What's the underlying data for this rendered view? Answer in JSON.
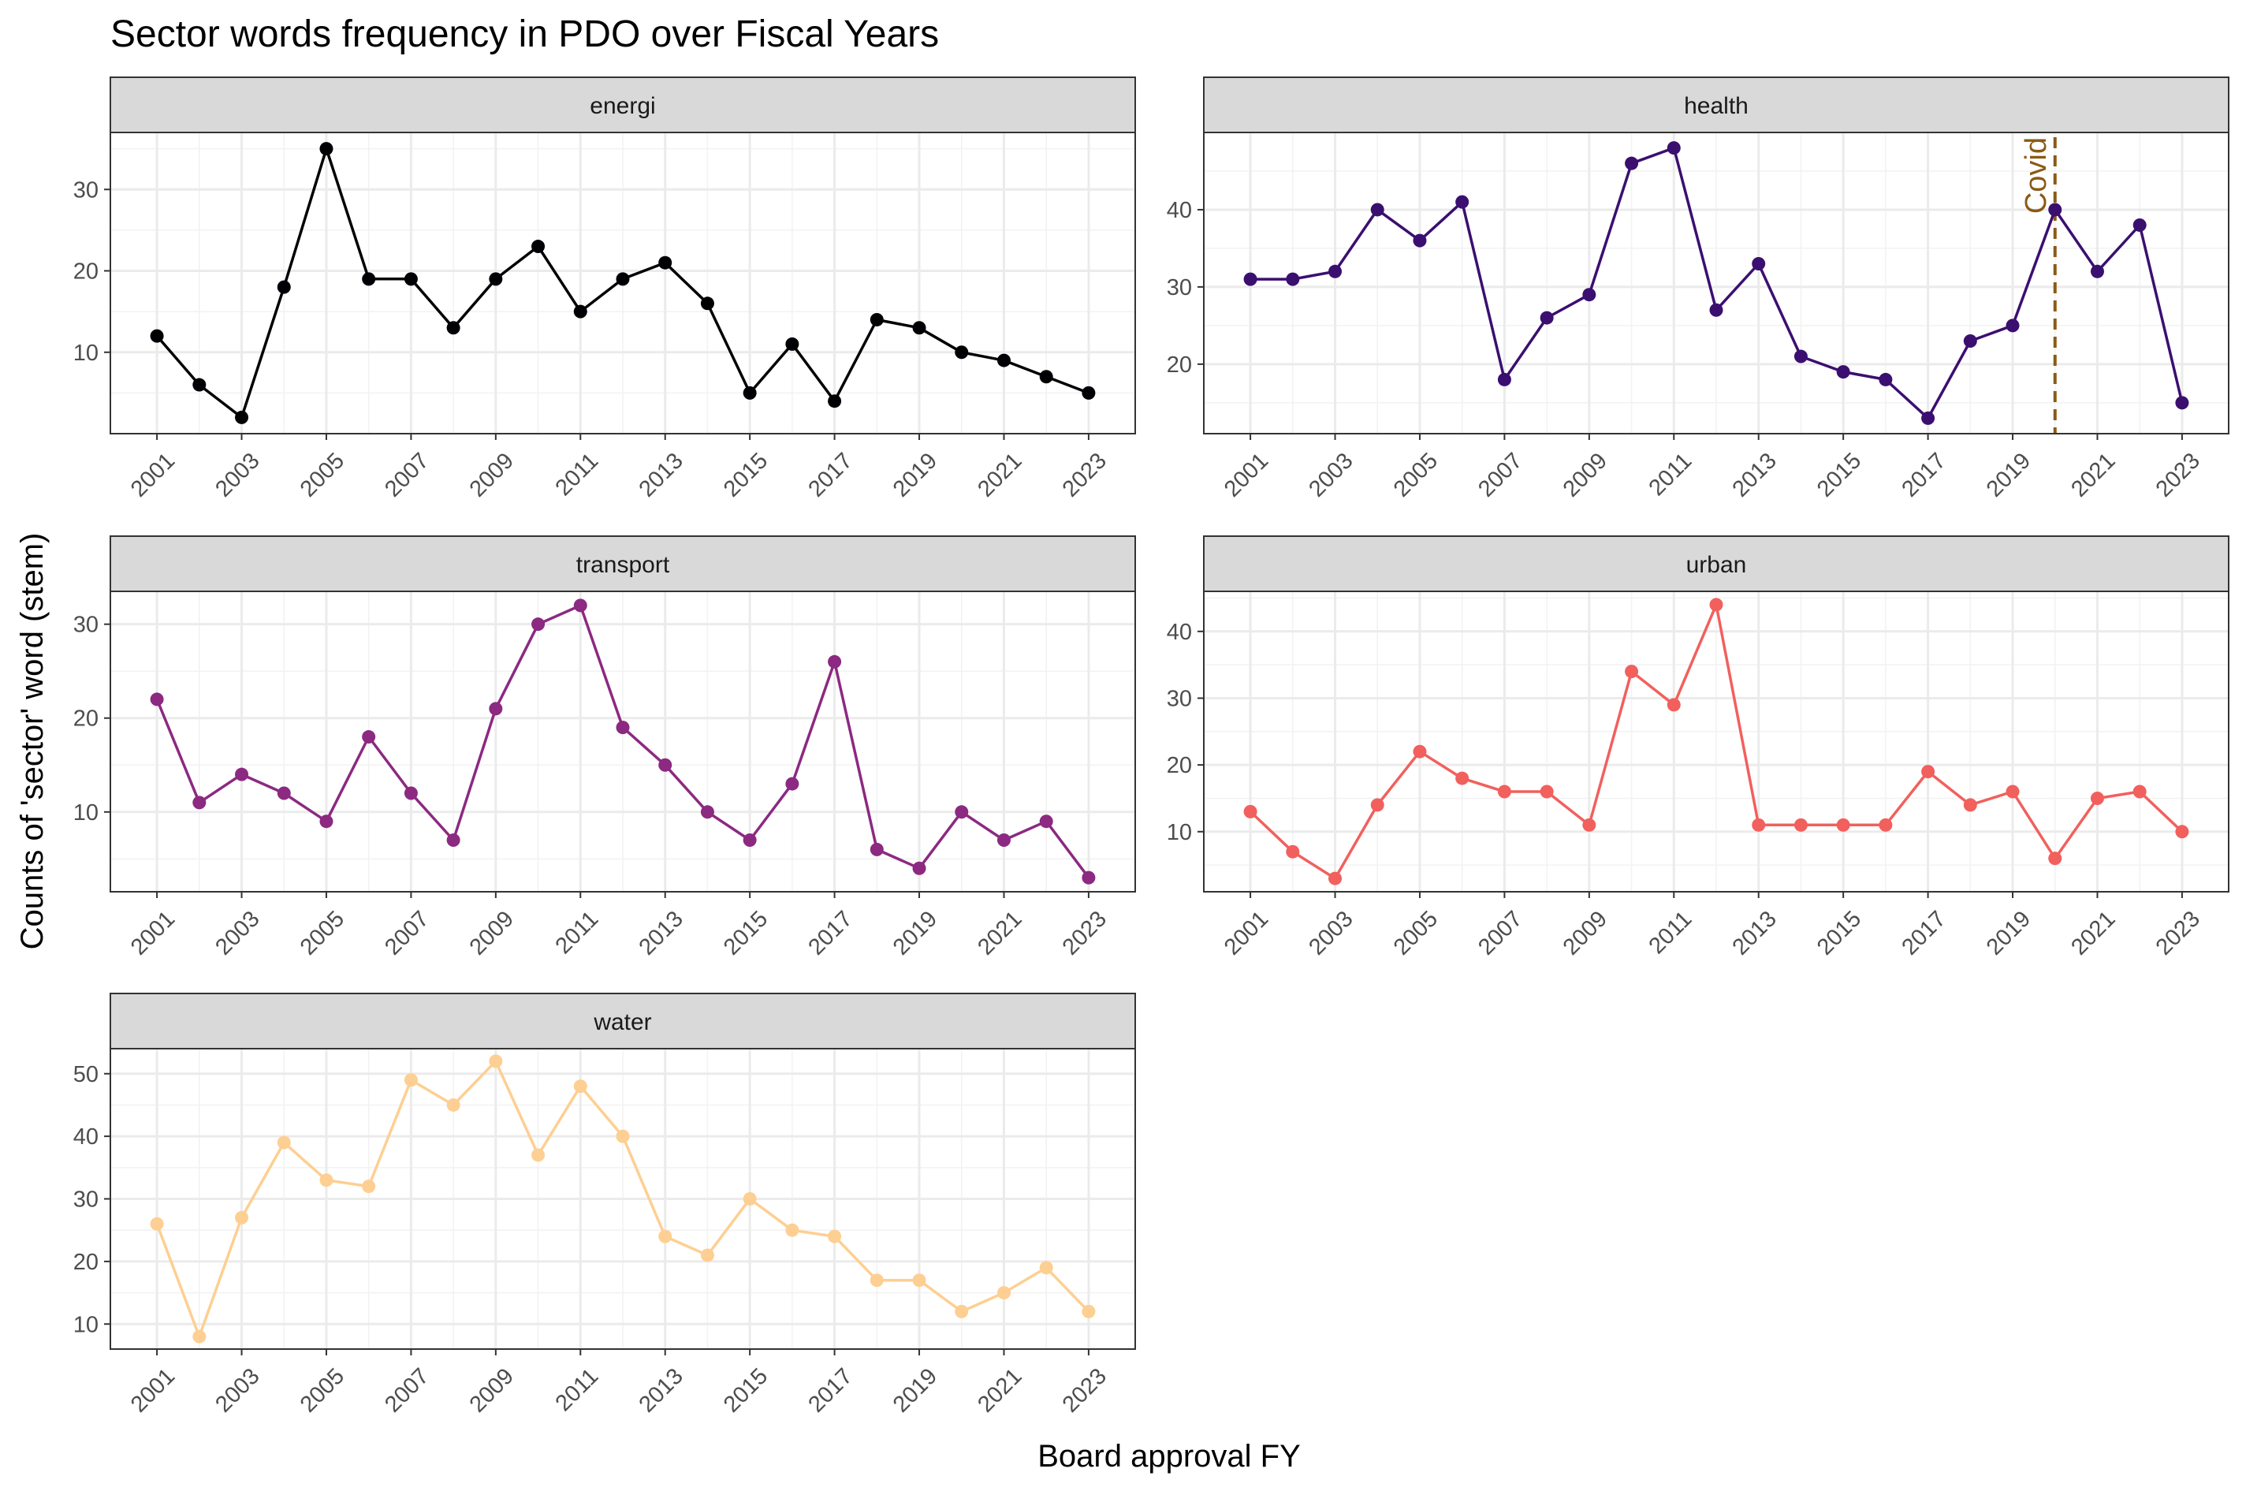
{
  "chart_data": {
    "type": "line",
    "title": "Sector words frequency in PDO over Fiscal Years",
    "xlabel": "Board approval FY",
    "ylabel": "Counts of 'sector' word (stem)",
    "x": [
      2001,
      2002,
      2003,
      2004,
      2005,
      2006,
      2007,
      2008,
      2009,
      2010,
      2011,
      2012,
      2013,
      2014,
      2015,
      2016,
      2017,
      2018,
      2019,
      2020,
      2021,
      2022,
      2023
    ],
    "x_tick_labels": [
      "2001",
      "2003",
      "2005",
      "2007",
      "2009",
      "2011",
      "2013",
      "2015",
      "2017",
      "2019",
      "2021",
      "2023"
    ],
    "grid": true,
    "legend": "none",
    "facets": [
      {
        "name": "energi",
        "color": "#000004",
        "values": [
          12,
          6,
          2,
          18,
          35,
          19,
          19,
          13,
          19,
          23,
          15,
          19,
          21,
          16,
          5,
          11,
          4,
          14,
          13,
          10,
          9,
          7,
          5
        ],
        "ylim": [
          0,
          37
        ],
        "y_ticks": [
          10,
          20,
          30
        ]
      },
      {
        "name": "health",
        "color": "#3b0f70",
        "values": [
          31,
          31,
          32,
          40,
          36,
          41,
          18,
          26,
          29,
          46,
          48,
          27,
          33,
          21,
          19,
          18,
          13,
          23,
          25,
          40,
          32,
          38,
          15
        ],
        "ylim": [
          11,
          50
        ],
        "y_ticks": [
          20,
          30,
          40
        ],
        "annotation": {
          "label": "Covid",
          "x": 2020,
          "color": "#8b5a14"
        }
      },
      {
        "name": "transport",
        "color": "#8c2981",
        "values": [
          22,
          11,
          14,
          12,
          9,
          18,
          12,
          7,
          21,
          30,
          32,
          19,
          15,
          10,
          7,
          13,
          26,
          6,
          4,
          10,
          7,
          9,
          3
        ],
        "ylim": [
          1.5,
          33.5
        ],
        "y_ticks": [
          10,
          20,
          30
        ]
      },
      {
        "name": "urban",
        "color": "#f1605d",
        "values": [
          13,
          7,
          3,
          14,
          22,
          18,
          16,
          16,
          11,
          34,
          29,
          44,
          11,
          11,
          11,
          11,
          19,
          14,
          16,
          6,
          15,
          16,
          10
        ],
        "ylim": [
          1,
          46
        ],
        "y_ticks": [
          10,
          20,
          30,
          40
        ]
      },
      {
        "name": "water",
        "color": "#fecf92",
        "values": [
          26,
          8,
          27,
          39,
          33,
          32,
          49,
          45,
          52,
          37,
          48,
          40,
          24,
          21,
          30,
          25,
          24,
          17,
          17,
          12,
          15,
          19,
          12
        ],
        "ylim": [
          6,
          54
        ],
        "y_ticks": [
          10,
          20,
          30,
          40,
          50
        ]
      }
    ]
  }
}
